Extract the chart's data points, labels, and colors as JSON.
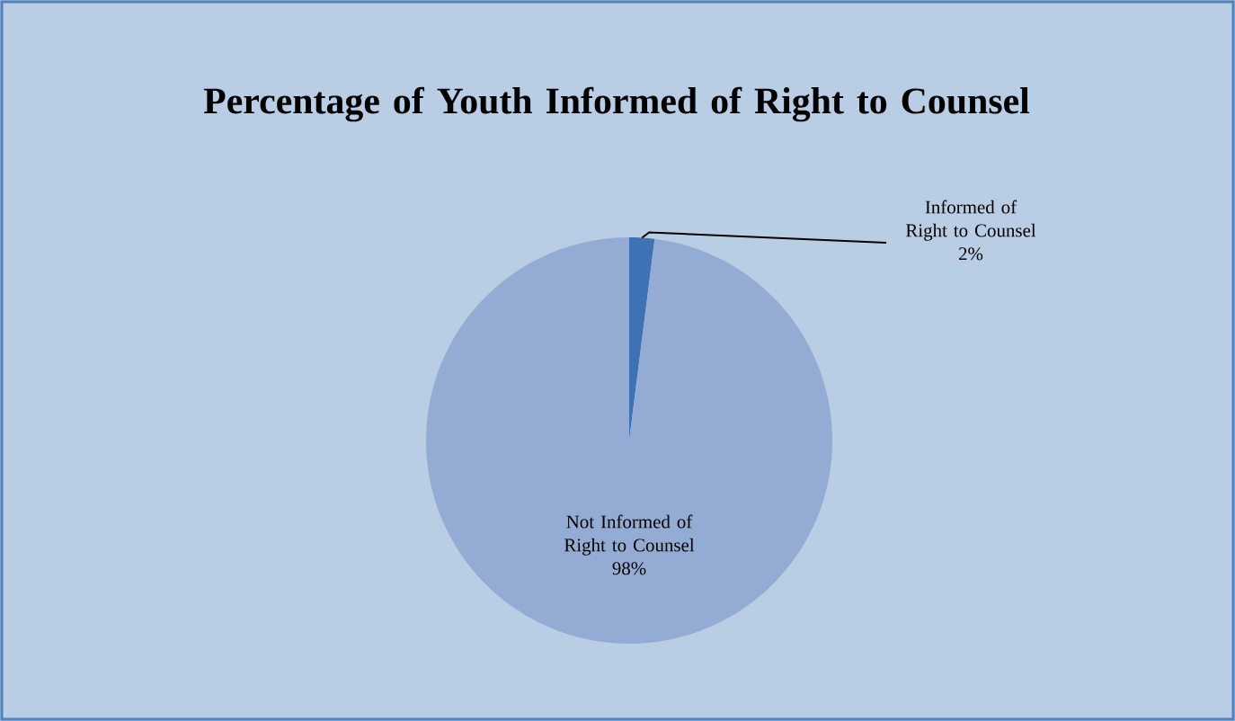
{
  "chart_data": {
    "type": "pie",
    "title": "Percentage of Youth Informed of Right to Counsel",
    "categories": [
      "Informed of Right to Counsel",
      "Not Informed of Right to Counsel"
    ],
    "values": [
      2,
      98
    ],
    "value_labels": [
      "2%",
      "98%"
    ],
    "colors": [
      "#3d72b4",
      "#94acd4"
    ]
  }
}
